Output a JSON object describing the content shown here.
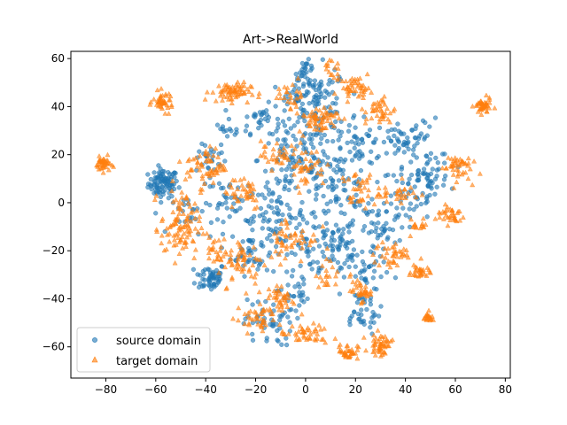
{
  "chart_data": {
    "type": "scatter",
    "title": "Art->RealWorld",
    "xlabel": "",
    "ylabel": "",
    "xlim": [
      -94,
      82
    ],
    "ylim": [
      -73,
      63
    ],
    "xticks": [
      -80,
      -60,
      -40,
      -20,
      0,
      20,
      40,
      60,
      80
    ],
    "yticks": [
      -60,
      -40,
      -20,
      0,
      20,
      40,
      60
    ],
    "grid": false,
    "legend_position": "bottom-left",
    "series": [
      {
        "name": "source domain",
        "marker": "circle",
        "color": "#1f77b4",
        "clusters": [
          {
            "cx": -57,
            "cy": 8,
            "sx": 3,
            "sy": 3,
            "n": 90
          },
          {
            "cx": -38,
            "cy": 18,
            "sx": 3,
            "sy": 3,
            "n": 25
          },
          {
            "cx": -38,
            "cy": -31,
            "sx": 3,
            "sy": 3,
            "n": 55
          },
          {
            "cx": -18,
            "cy": 35,
            "sx": 4,
            "sy": 3,
            "n": 30
          },
          {
            "cx": -22,
            "cy": -20,
            "sx": 4,
            "sy": 5,
            "n": 45
          },
          {
            "cx": -12,
            "cy": -5,
            "sx": 6,
            "sy": 6,
            "n": 70
          },
          {
            "cx": -5,
            "cy": 18,
            "sx": 7,
            "sy": 8,
            "n": 80
          },
          {
            "cx": 5,
            "cy": 40,
            "sx": 6,
            "sy": 8,
            "n": 90
          },
          {
            "cx": 0,
            "cy": 55,
            "sx": 2,
            "sy": 2,
            "n": 20
          },
          {
            "cx": 10,
            "cy": 5,
            "sx": 8,
            "sy": 8,
            "n": 90
          },
          {
            "cx": 15,
            "cy": -18,
            "sx": 7,
            "sy": 7,
            "n": 70
          },
          {
            "cx": 20,
            "cy": 25,
            "sx": 6,
            "sy": 6,
            "n": 60
          },
          {
            "cx": 22,
            "cy": -45,
            "sx": 4,
            "sy": 5,
            "n": 40
          },
          {
            "cx": -15,
            "cy": -50,
            "sx": 5,
            "sy": 5,
            "n": 50
          },
          {
            "cx": -5,
            "cy": -38,
            "sx": 3,
            "sy": 3,
            "n": 25
          },
          {
            "cx": 30,
            "cy": -10,
            "sx": 5,
            "sy": 6,
            "n": 40
          },
          {
            "cx": 42,
            "cy": 25,
            "sx": 6,
            "sy": 5,
            "n": 60
          },
          {
            "cx": 48,
            "cy": 10,
            "sx": 5,
            "sy": 4,
            "n": 55
          },
          {
            "cx": 40,
            "cy": 0,
            "sx": 5,
            "sy": 5,
            "n": 30
          },
          {
            "cx": -30,
            "cy": 0,
            "sx": 6,
            "sy": 5,
            "n": 40
          },
          {
            "cx": -45,
            "cy": -5,
            "sx": 4,
            "sy": 4,
            "n": 20
          },
          {
            "cx": 0,
            "cy": -20,
            "sx": 6,
            "sy": 5,
            "n": 40
          },
          {
            "cx": -30,
            "cy": 30,
            "sx": 3,
            "sy": 2,
            "n": 15
          },
          {
            "cx": 25,
            "cy": -30,
            "sx": 4,
            "sy": 4,
            "n": 25
          },
          {
            "cx": -2,
            "cy": 45,
            "sx": 5,
            "sy": 4,
            "n": 30
          }
        ]
      },
      {
        "name": "target domain",
        "marker": "triangle",
        "color": "#ff7f0e",
        "clusters": [
          {
            "cx": -81,
            "cy": 16,
            "sx": 1.5,
            "sy": 1.5,
            "n": 40
          },
          {
            "cx": -57,
            "cy": 42,
            "sx": 2,
            "sy": 2,
            "n": 45
          },
          {
            "cx": 71,
            "cy": 40,
            "sx": 1.6,
            "sy": 1.6,
            "n": 45
          },
          {
            "cx": 49,
            "cy": -48,
            "sx": 1.2,
            "sy": 1.2,
            "n": 20
          },
          {
            "cx": 46,
            "cy": -29,
            "sx": 1.8,
            "sy": 1.2,
            "n": 30
          },
          {
            "cx": 30,
            "cy": -59,
            "sx": 2.2,
            "sy": 2.2,
            "n": 50
          },
          {
            "cx": 17,
            "cy": -62,
            "sx": 2,
            "sy": 1.6,
            "n": 35
          },
          {
            "cx": -30,
            "cy": 46,
            "sx": 4,
            "sy": 2,
            "n": 70
          },
          {
            "cx": -50,
            "cy": -10,
            "sx": 4,
            "sy": 7,
            "n": 100
          },
          {
            "cx": -40,
            "cy": 15,
            "sx": 4,
            "sy": 4,
            "n": 60
          },
          {
            "cx": -25,
            "cy": 5,
            "sx": 4,
            "sy": 4,
            "n": 40
          },
          {
            "cx": -25,
            "cy": -25,
            "sx": 4,
            "sy": 5,
            "n": 50
          },
          {
            "cx": -10,
            "cy": -40,
            "sx": 3,
            "sy": 3,
            "n": 40
          },
          {
            "cx": -5,
            "cy": -15,
            "sx": 5,
            "sy": 5,
            "n": 50
          },
          {
            "cx": 0,
            "cy": 15,
            "sx": 4,
            "sy": 4,
            "n": 40
          },
          {
            "cx": 5,
            "cy": 35,
            "sx": 4,
            "sy": 3,
            "n": 60
          },
          {
            "cx": 20,
            "cy": 48,
            "sx": 3,
            "sy": 2,
            "n": 45
          },
          {
            "cx": 30,
            "cy": 38,
            "sx": 3,
            "sy": 3,
            "n": 40
          },
          {
            "cx": 22,
            "cy": 5,
            "sx": 4,
            "sy": 4,
            "n": 40
          },
          {
            "cx": 22,
            "cy": -37,
            "sx": 2,
            "sy": 2,
            "n": 35
          },
          {
            "cx": 35,
            "cy": -22,
            "sx": 4,
            "sy": 3,
            "n": 40
          },
          {
            "cx": 60,
            "cy": 15,
            "sx": 3,
            "sy": 3,
            "n": 45
          },
          {
            "cx": 58,
            "cy": -5,
            "sx": 3,
            "sy": 2,
            "n": 35
          },
          {
            "cx": -20,
            "cy": -48,
            "sx": 4,
            "sy": 3,
            "n": 40
          },
          {
            "cx": 0,
            "cy": -55,
            "sx": 5,
            "sy": 2,
            "n": 45
          },
          {
            "cx": -12,
            "cy": 20,
            "sx": 3,
            "sy": 3,
            "n": 30
          },
          {
            "cx": 38,
            "cy": 5,
            "sx": 4,
            "sy": 4,
            "n": 25
          },
          {
            "cx": 10,
            "cy": 55,
            "sx": 2,
            "sy": 2,
            "n": 15
          },
          {
            "cx": -5,
            "cy": 45,
            "sx": 3,
            "sy": 3,
            "n": 25
          },
          {
            "cx": 45,
            "cy": -10,
            "sx": 2,
            "sy": 2,
            "n": 15
          },
          {
            "cx": -35,
            "cy": -20,
            "sx": 3,
            "sy": 3,
            "n": 25
          },
          {
            "cx": 10,
            "cy": -30,
            "sx": 3,
            "sy": 3,
            "n": 20
          }
        ]
      }
    ]
  }
}
